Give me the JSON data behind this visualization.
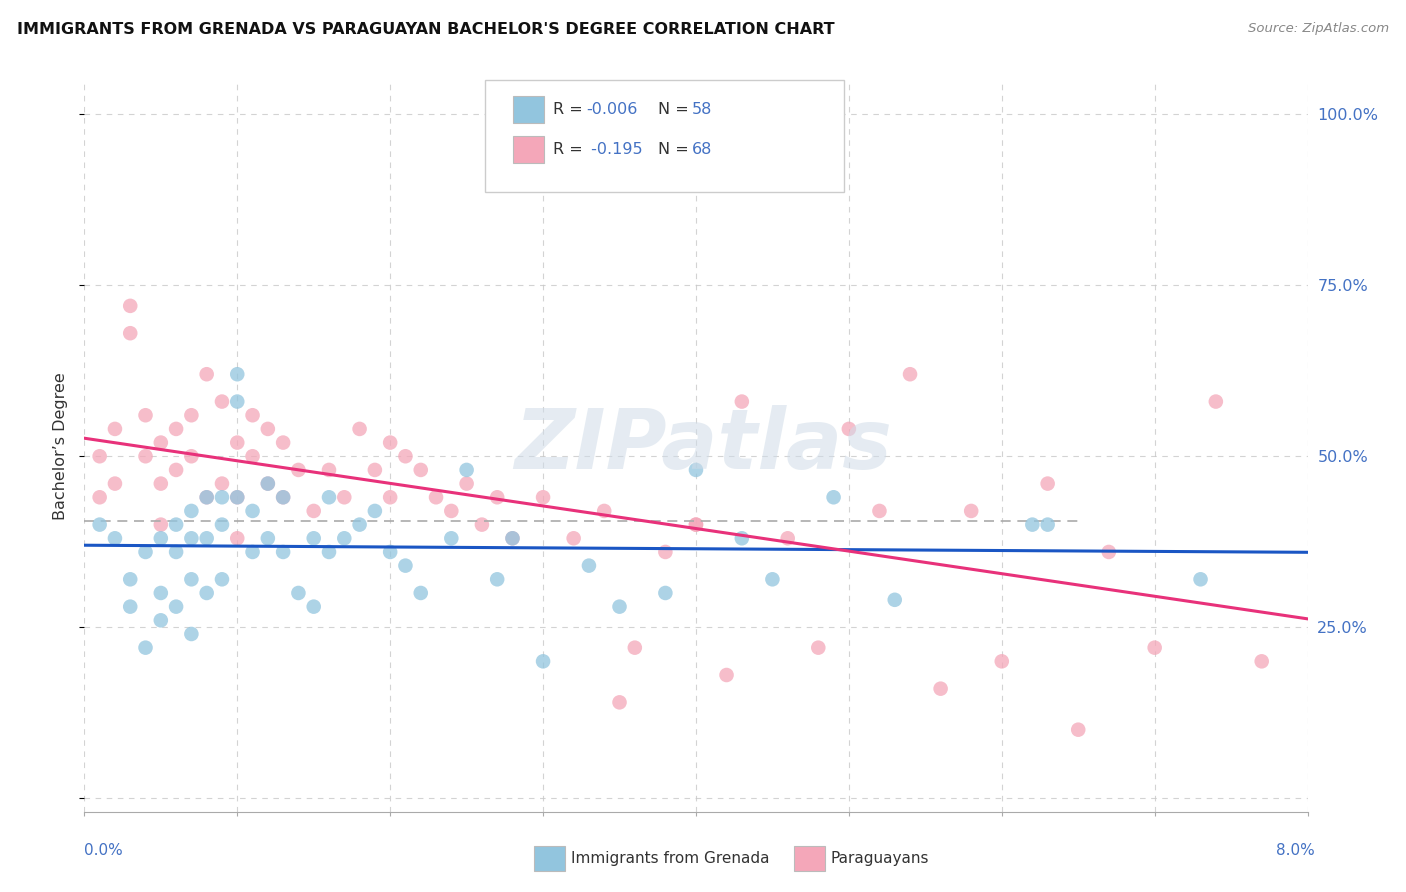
{
  "title": "IMMIGRANTS FROM GRENADA VS PARAGUAYAN BACHELOR'S DEGREE CORRELATION CHART",
  "source": "Source: ZipAtlas.com",
  "ylabel": "Bachelor’s Degree",
  "legend_label1": "Immigrants from Grenada",
  "legend_label2": "Paraguayans",
  "color_blue": "#92c5de",
  "color_pink": "#f4a7b9",
  "trend_blue": "#1a56c4",
  "trend_pink": "#e8317a",
  "background": "#ffffff",
  "grid_color": "#c8c8c8",
  "right_axis_color": "#4472c4",
  "xmin": 0.0,
  "xmax": 0.08,
  "ymin": -0.02,
  "ymax": 1.05,
  "yticks": [
    0.0,
    0.25,
    0.5,
    0.75,
    1.0
  ],
  "ytick_labels": [
    "",
    "25.0%",
    "50.0%",
    "75.0%",
    "100.0%"
  ],
  "blue_x": [
    0.001,
    0.002,
    0.003,
    0.003,
    0.004,
    0.004,
    0.005,
    0.005,
    0.005,
    0.006,
    0.006,
    0.006,
    0.007,
    0.007,
    0.007,
    0.007,
    0.008,
    0.008,
    0.008,
    0.009,
    0.009,
    0.009,
    0.01,
    0.01,
    0.01,
    0.011,
    0.011,
    0.012,
    0.012,
    0.013,
    0.013,
    0.014,
    0.015,
    0.015,
    0.016,
    0.016,
    0.017,
    0.018,
    0.019,
    0.02,
    0.021,
    0.022,
    0.024,
    0.025,
    0.027,
    0.028,
    0.03,
    0.033,
    0.035,
    0.038,
    0.04,
    0.043,
    0.045,
    0.049,
    0.053,
    0.062,
    0.063,
    0.073
  ],
  "blue_y": [
    0.4,
    0.38,
    0.32,
    0.28,
    0.36,
    0.22,
    0.38,
    0.3,
    0.26,
    0.4,
    0.36,
    0.28,
    0.42,
    0.38,
    0.32,
    0.24,
    0.44,
    0.38,
    0.3,
    0.44,
    0.4,
    0.32,
    0.62,
    0.58,
    0.44,
    0.42,
    0.36,
    0.46,
    0.38,
    0.44,
    0.36,
    0.3,
    0.38,
    0.28,
    0.44,
    0.36,
    0.38,
    0.4,
    0.42,
    0.36,
    0.34,
    0.3,
    0.38,
    0.48,
    0.32,
    0.38,
    0.2,
    0.34,
    0.28,
    0.3,
    0.48,
    0.38,
    0.32,
    0.44,
    0.29,
    0.4,
    0.4,
    0.32
  ],
  "pink_x": [
    0.001,
    0.001,
    0.002,
    0.002,
    0.003,
    0.003,
    0.004,
    0.004,
    0.005,
    0.005,
    0.005,
    0.006,
    0.006,
    0.007,
    0.007,
    0.008,
    0.008,
    0.009,
    0.009,
    0.01,
    0.01,
    0.01,
    0.011,
    0.011,
    0.012,
    0.012,
    0.013,
    0.013,
    0.014,
    0.015,
    0.016,
    0.017,
    0.018,
    0.019,
    0.02,
    0.02,
    0.021,
    0.022,
    0.023,
    0.024,
    0.025,
    0.026,
    0.027,
    0.028,
    0.03,
    0.032,
    0.034,
    0.036,
    0.038,
    0.04,
    0.043,
    0.046,
    0.05,
    0.054,
    0.058,
    0.063,
    0.067,
    0.07,
    0.074,
    0.077,
    0.035,
    0.04,
    0.042,
    0.048,
    0.052,
    0.056,
    0.06,
    0.065
  ],
  "pink_y": [
    0.5,
    0.44,
    0.54,
    0.46,
    0.72,
    0.68,
    0.56,
    0.5,
    0.52,
    0.46,
    0.4,
    0.54,
    0.48,
    0.56,
    0.5,
    0.62,
    0.44,
    0.58,
    0.46,
    0.52,
    0.44,
    0.38,
    0.56,
    0.5,
    0.54,
    0.46,
    0.52,
    0.44,
    0.48,
    0.42,
    0.48,
    0.44,
    0.54,
    0.48,
    0.52,
    0.44,
    0.5,
    0.48,
    0.44,
    0.42,
    0.46,
    0.4,
    0.44,
    0.38,
    0.44,
    0.38,
    0.42,
    0.22,
    0.36,
    0.4,
    0.58,
    0.38,
    0.54,
    0.62,
    0.42,
    0.46,
    0.36,
    0.22,
    0.58,
    0.2,
    0.14,
    0.4,
    0.18,
    0.22,
    0.42,
    0.16,
    0.2,
    0.1
  ],
  "dashed_line_y": 0.405
}
